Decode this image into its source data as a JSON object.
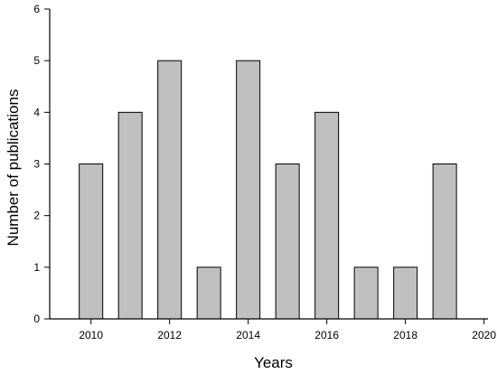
{
  "chart_data": {
    "type": "bar",
    "title": "",
    "xlabel": "Years",
    "ylabel": "Number of publications",
    "x": [
      2010,
      2011,
      2012,
      2013,
      2014,
      2015,
      2016,
      2017,
      2018,
      2019
    ],
    "values": [
      3,
      4,
      5,
      1,
      5,
      3,
      4,
      1,
      1,
      3
    ],
    "xlim": [
      2008.95,
      2020.1
    ],
    "ylim": [
      0,
      6
    ],
    "xticks": [
      "2010",
      "2012",
      "2014",
      "2016",
      "2018",
      "2020"
    ],
    "yticks": [
      "0",
      "1",
      "2",
      "3",
      "4",
      "5",
      "6"
    ],
    "bar_color": "#c0c0c0",
    "bar_edge_color": "#000000",
    "grid": false,
    "legend": "none"
  }
}
